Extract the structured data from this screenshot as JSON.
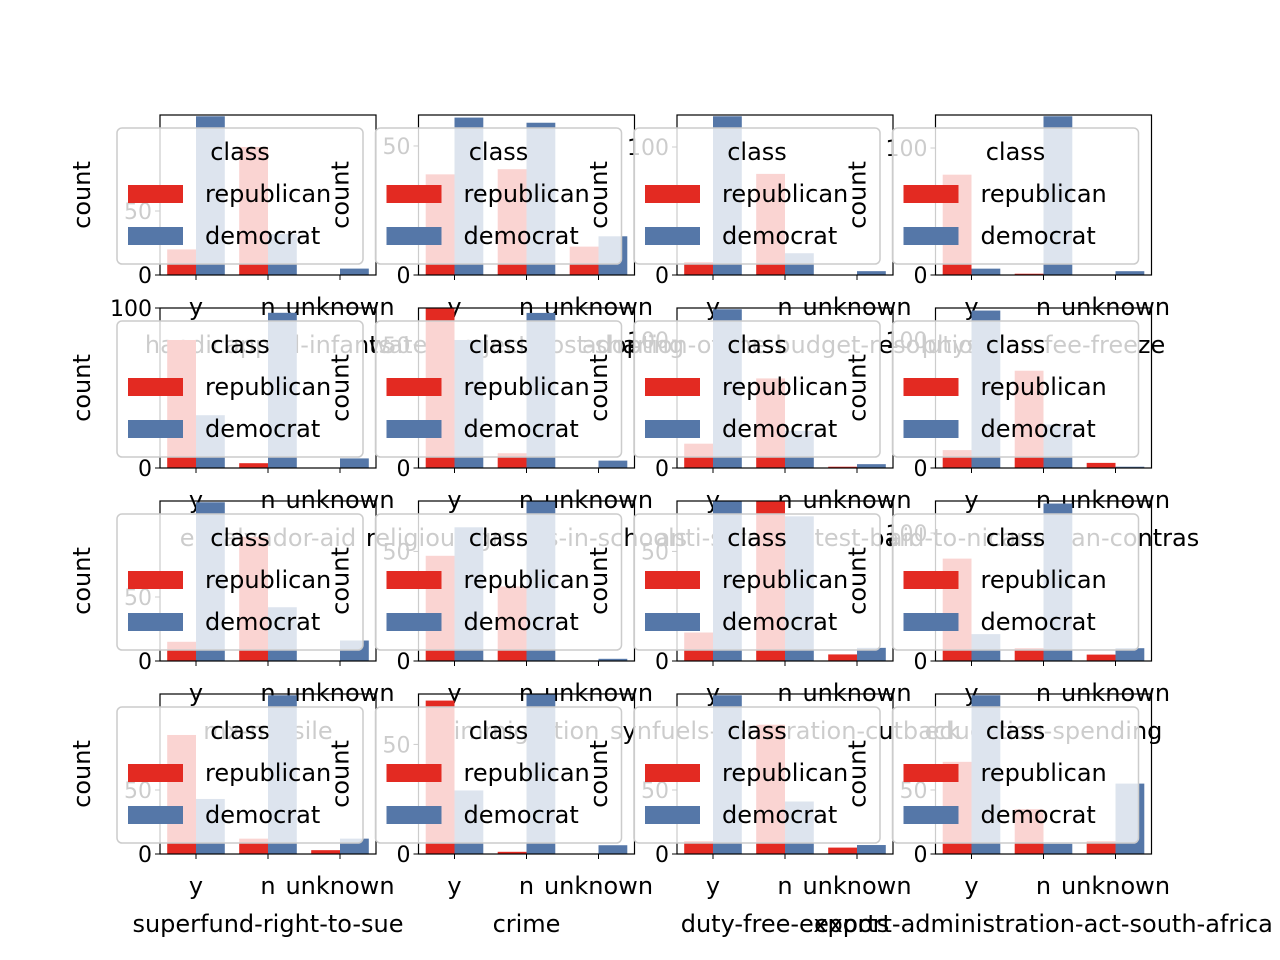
{
  "figure": {
    "width": 1280,
    "height": 960
  },
  "colors": {
    "republican": "#e32a22",
    "democrat": "#5577a8",
    "legend_edge": "#cccccc",
    "axis": "#000000"
  },
  "legend": {
    "title": "class",
    "placement": "upper-center",
    "entries": [
      "republican",
      "democrat"
    ]
  },
  "chart_data": [
    {
      "type": "bar",
      "xlabel": "handicapped-infants",
      "ylabel": "count",
      "categories": [
        "y",
        "n",
        "unknown"
      ],
      "ylim": [
        0,
        125
      ],
      "yticks": [
        0,
        50
      ],
      "series": [
        {
          "name": "republican",
          "values": [
            20,
            100,
            0
          ]
        },
        {
          "name": "democrat",
          "values": [
            124,
            32,
            5
          ]
        }
      ]
    },
    {
      "type": "bar",
      "xlabel": "water-project-cost-sharing",
      "ylabel": "count",
      "categories": [
        "y",
        "n",
        "unknown"
      ],
      "ylim": [
        0,
        62
      ],
      "yticks": [
        0,
        50
      ],
      "series": [
        {
          "name": "republican",
          "values": [
            39,
            41,
            11
          ]
        },
        {
          "name": "democrat",
          "values": [
            61,
            59,
            15
          ]
        }
      ]
    },
    {
      "type": "bar",
      "xlabel": "adoption-of-the-budget-resolution",
      "ylabel": "count",
      "categories": [
        "y",
        "n",
        "unknown"
      ],
      "ylim": [
        0,
        125
      ],
      "yticks": [
        0,
        100
      ],
      "series": [
        {
          "name": "republican",
          "values": [
            10,
            79,
            0
          ]
        },
        {
          "name": "democrat",
          "values": [
            124,
            17,
            3
          ]
        }
      ]
    },
    {
      "type": "bar",
      "xlabel": "physician-fee-freeze",
      "ylabel": "count",
      "categories": [
        "y",
        "n",
        "unknown"
      ],
      "ylim": [
        0,
        126
      ],
      "yticks": [
        0,
        100
      ],
      "series": [
        {
          "name": "republican",
          "values": [
            79,
            1,
            0
          ]
        },
        {
          "name": "democrat",
          "values": [
            5,
            125,
            3
          ]
        }
      ]
    },
    {
      "type": "bar",
      "xlabel": "el-salvador-aid",
      "ylabel": "count",
      "categories": [
        "y",
        "n",
        "unknown"
      ],
      "ylim": [
        0,
        100
      ],
      "yticks": [
        0,
        100
      ],
      "series": [
        {
          "name": "republican",
          "values": [
            80,
            3,
            0
          ]
        },
        {
          "name": "democrat",
          "values": [
            33,
            97,
            6
          ]
        }
      ]
    },
    {
      "type": "bar",
      "xlabel": "religious-groups-in-schools",
      "ylabel": "count",
      "categories": [
        "y",
        "n",
        "unknown"
      ],
      "ylim": [
        0,
        65
      ],
      "yticks": [
        0,
        50
      ],
      "series": [
        {
          "name": "republican",
          "values": [
            65,
            6,
            0
          ]
        },
        {
          "name": "democrat",
          "values": [
            52,
            63,
            3
          ]
        }
      ]
    },
    {
      "type": "bar",
      "xlabel": "anti-satellite-test-ban",
      "ylabel": "count",
      "categories": [
        "y",
        "n",
        "unknown"
      ],
      "ylim": [
        0,
        125
      ],
      "yticks": [
        0,
        100
      ],
      "series": [
        {
          "name": "republican",
          "values": [
            19,
            70,
            1
          ]
        },
        {
          "name": "democrat",
          "values": [
            124,
            29,
            3
          ]
        }
      ]
    },
    {
      "type": "bar",
      "xlabel": "aid-to-nicaraguan-contras",
      "ylabel": "count",
      "categories": [
        "y",
        "n",
        "unknown"
      ],
      "ylim": [
        0,
        125
      ],
      "yticks": [
        0,
        100
      ],
      "series": [
        {
          "name": "republican",
          "values": [
            14,
            76,
            4
          ]
        },
        {
          "name": "democrat",
          "values": [
            123,
            34,
            1
          ]
        }
      ]
    },
    {
      "type": "bar",
      "xlabel": "mx-missile",
      "ylabel": "count",
      "categories": [
        "y",
        "n",
        "unknown"
      ],
      "ylim": [
        0,
        125
      ],
      "yticks": [
        0,
        50
      ],
      "series": [
        {
          "name": "republican",
          "values": [
            15,
            97,
            0
          ]
        },
        {
          "name": "democrat",
          "values": [
            124,
            42,
            16
          ]
        }
      ]
    },
    {
      "type": "bar",
      "xlabel": "immigration",
      "ylabel": "count",
      "categories": [
        "y",
        "n",
        "unknown"
      ],
      "ylim": [
        0,
        73
      ],
      "yticks": [
        0,
        50
      ],
      "series": [
        {
          "name": "republican",
          "values": [
            48,
            34,
            0
          ]
        },
        {
          "name": "democrat",
          "values": [
            61,
            73,
            1
          ]
        }
      ]
    },
    {
      "type": "bar",
      "xlabel": "synfuels-corporation-cutback",
      "ylabel": "count",
      "categories": [
        "y",
        "n",
        "unknown"
      ],
      "ylim": [
        0,
        73
      ],
      "yticks": [
        0,
        50
      ],
      "series": [
        {
          "name": "republican",
          "values": [
            13,
            73,
            3
          ]
        },
        {
          "name": "democrat",
          "values": [
            73,
            66,
            6
          ]
        }
      ]
    },
    {
      "type": "bar",
      "xlabel": "education-spending",
      "ylabel": "count",
      "categories": [
        "y",
        "n",
        "unknown"
      ],
      "ylim": [
        0,
        125
      ],
      "yticks": [
        0,
        100
      ],
      "series": [
        {
          "name": "republican",
          "values": [
            80,
            10,
            5
          ]
        },
        {
          "name": "democrat",
          "values": [
            21,
            123,
            10
          ]
        }
      ]
    },
    {
      "type": "bar",
      "xlabel": "superfund-right-to-sue",
      "ylabel": "count",
      "categories": [
        "y",
        "n",
        "unknown"
      ],
      "ylim": [
        0,
        125
      ],
      "yticks": [
        0,
        50
      ],
      "series": [
        {
          "name": "republican",
          "values": [
            93,
            12,
            3
          ]
        },
        {
          "name": "democrat",
          "values": [
            43,
            124,
            12
          ]
        }
      ]
    },
    {
      "type": "bar",
      "xlabel": "crime",
      "ylabel": "count",
      "categories": [
        "y",
        "n",
        "unknown"
      ],
      "ylim": [
        0,
        73
      ],
      "yticks": [
        0,
        50
      ],
      "series": [
        {
          "name": "republican",
          "values": [
            70,
            1,
            0
          ]
        },
        {
          "name": "democrat",
          "values": [
            29,
            73,
            4
          ]
        }
      ]
    },
    {
      "type": "bar",
      "xlabel": "duty-free-exports",
      "ylabel": "count",
      "categories": [
        "y",
        "n",
        "unknown"
      ],
      "ylim": [
        0,
        125
      ],
      "yticks": [
        0,
        50
      ],
      "series": [
        {
          "name": "republican",
          "values": [
            10,
            101,
            5
          ]
        },
        {
          "name": "democrat",
          "values": [
            124,
            41,
            7
          ]
        }
      ]
    },
    {
      "type": "bar",
      "xlabel": "export-administration-act-south-africa",
      "ylabel": "count",
      "categories": [
        "y",
        "n",
        "unknown"
      ],
      "ylim": [
        0,
        125
      ],
      "yticks": [
        0,
        50
      ],
      "series": [
        {
          "name": "republican",
          "values": [
            72,
            35,
            10
          ]
        },
        {
          "name": "democrat",
          "values": [
            124,
            8,
            55
          ]
        }
      ]
    }
  ]
}
